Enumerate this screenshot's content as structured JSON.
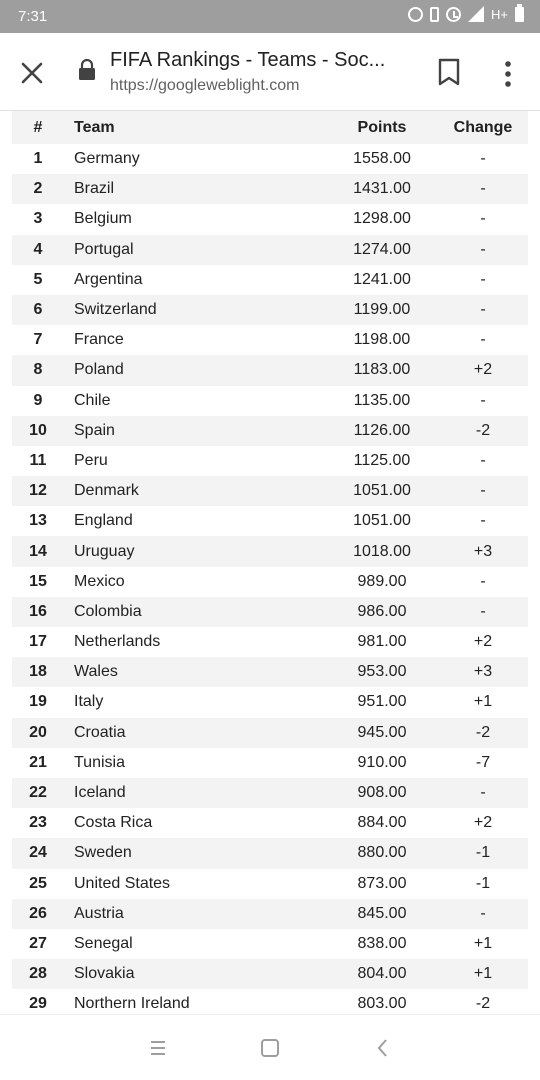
{
  "status_bar": {
    "time": "7:31",
    "network": "H+",
    "icons": [
      "sync-icon",
      "vibrate-icon",
      "alarm-icon",
      "signal-icon",
      "battery-icon"
    ]
  },
  "toolbar": {
    "title": "FIFA Rankings - Teams - Soc...",
    "url": "https://googleweblight.com"
  },
  "table": {
    "headers": {
      "rank": "#",
      "team": "Team",
      "points": "Points",
      "change": "Change"
    },
    "rows": [
      {
        "rank": "1",
        "team": "Germany",
        "points": "1558.00",
        "change": "-"
      },
      {
        "rank": "2",
        "team": "Brazil",
        "points": "1431.00",
        "change": "-"
      },
      {
        "rank": "3",
        "team": "Belgium",
        "points": "1298.00",
        "change": "-"
      },
      {
        "rank": "4",
        "team": "Portugal",
        "points": "1274.00",
        "change": "-"
      },
      {
        "rank": "5",
        "team": "Argentina",
        "points": "1241.00",
        "change": "-"
      },
      {
        "rank": "6",
        "team": "Switzerland",
        "points": "1199.00",
        "change": "-"
      },
      {
        "rank": "7",
        "team": "France",
        "points": "1198.00",
        "change": "-"
      },
      {
        "rank": "8",
        "team": "Poland",
        "points": "1183.00",
        "change": "+2"
      },
      {
        "rank": "9",
        "team": "Chile",
        "points": "1135.00",
        "change": "-"
      },
      {
        "rank": "10",
        "team": "Spain",
        "points": "1126.00",
        "change": "-2"
      },
      {
        "rank": "11",
        "team": "Peru",
        "points": "1125.00",
        "change": "-"
      },
      {
        "rank": "12",
        "team": "Denmark",
        "points": "1051.00",
        "change": "-"
      },
      {
        "rank": "13",
        "team": "England",
        "points": "1051.00",
        "change": "-"
      },
      {
        "rank": "14",
        "team": "Uruguay",
        "points": "1018.00",
        "change": "+3"
      },
      {
        "rank": "15",
        "team": "Mexico",
        "points": "989.00",
        "change": "-"
      },
      {
        "rank": "16",
        "team": "Colombia",
        "points": "986.00",
        "change": "-"
      },
      {
        "rank": "17",
        "team": "Netherlands",
        "points": "981.00",
        "change": "+2"
      },
      {
        "rank": "18",
        "team": "Wales",
        "points": "953.00",
        "change": "+3"
      },
      {
        "rank": "19",
        "team": "Italy",
        "points": "951.00",
        "change": "+1"
      },
      {
        "rank": "20",
        "team": "Croatia",
        "points": "945.00",
        "change": "-2"
      },
      {
        "rank": "21",
        "team": "Tunisia",
        "points": "910.00",
        "change": "-7"
      },
      {
        "rank": "22",
        "team": "Iceland",
        "points": "908.00",
        "change": "-"
      },
      {
        "rank": "23",
        "team": "Costa Rica",
        "points": "884.00",
        "change": "+2"
      },
      {
        "rank": "24",
        "team": "Sweden",
        "points": "880.00",
        "change": "-1"
      },
      {
        "rank": "25",
        "team": "United States",
        "points": "873.00",
        "change": "-1"
      },
      {
        "rank": "26",
        "team": "Austria",
        "points": "845.00",
        "change": "-"
      },
      {
        "rank": "27",
        "team": "Senegal",
        "points": "838.00",
        "change": "+1"
      },
      {
        "rank": "28",
        "team": "Slovakia",
        "points": "804.00",
        "change": "+1"
      },
      {
        "rank": "29",
        "team": "Northern Ireland",
        "points": "803.00",
        "change": "-2"
      }
    ]
  },
  "nav_bar": {
    "buttons": [
      "recents-icon",
      "home-icon",
      "back-icon"
    ]
  }
}
